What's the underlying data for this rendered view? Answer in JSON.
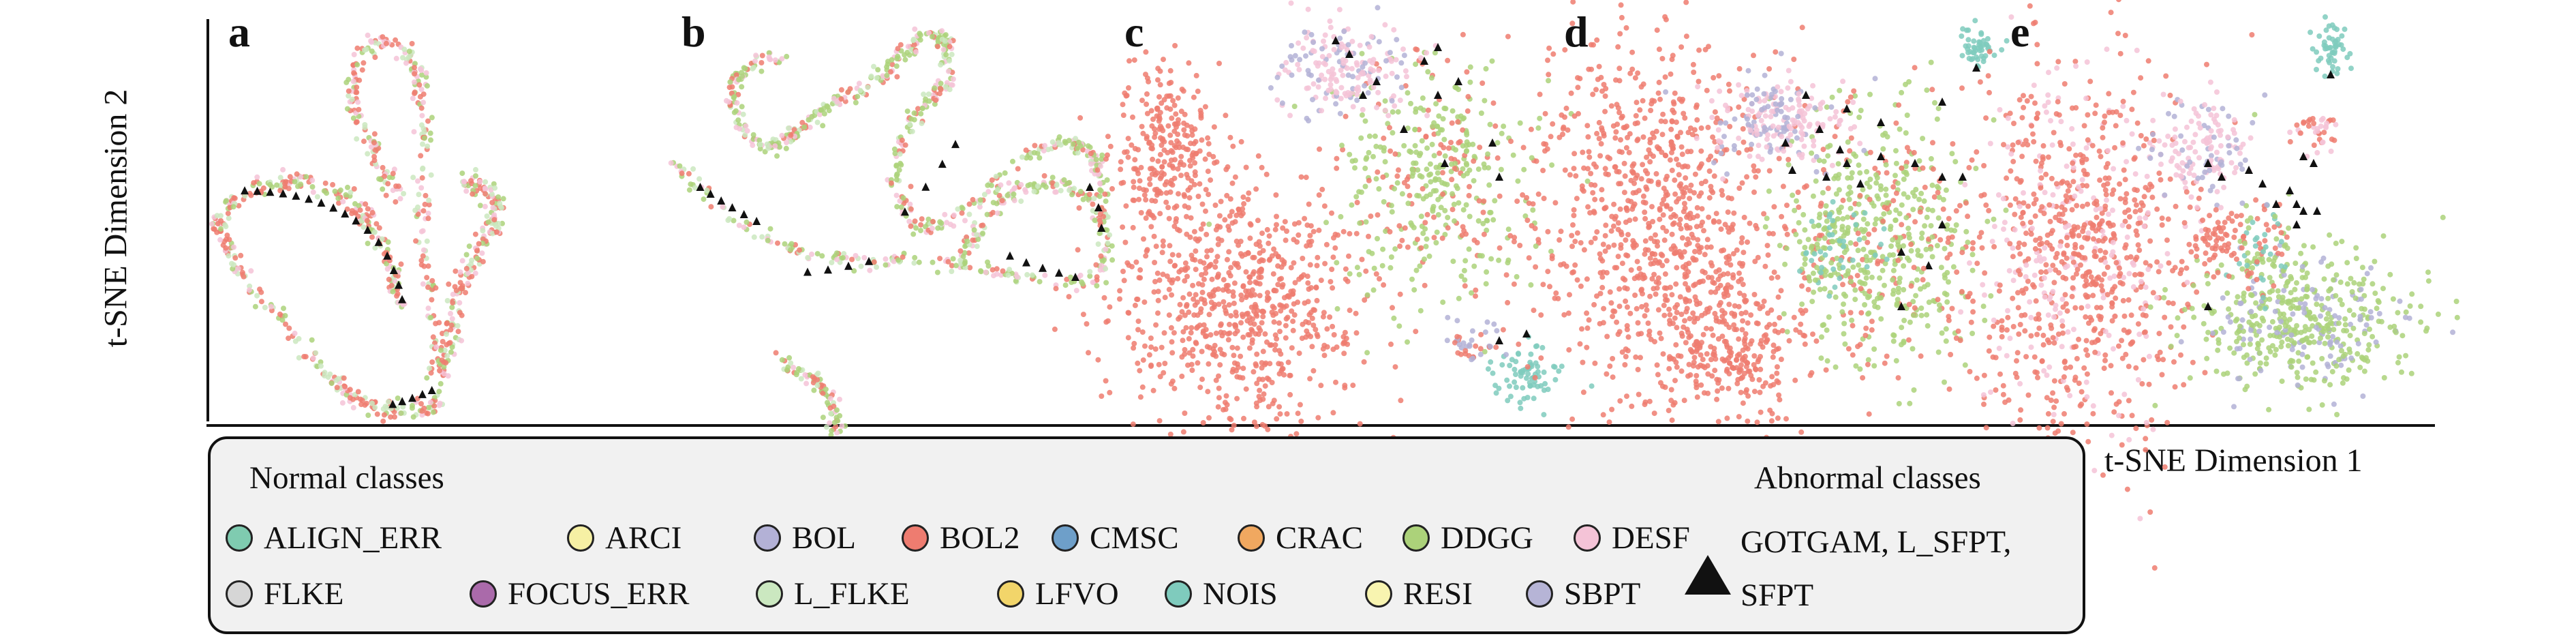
{
  "axes": {
    "ylabel": "t-SNE Dimension 2",
    "xlabel": "t-SNE Dimension 1"
  },
  "legend": {
    "normal_title": "Normal classes",
    "abnormal_title": "Abnormal classes",
    "normal_classes": [
      {
        "name": "ALIGN_ERR",
        "color": "#7fcbb0"
      },
      {
        "name": "ARCI",
        "color": "#f6f0a4"
      },
      {
        "name": "BOL",
        "color": "#b3b1d6"
      },
      {
        "name": "BOL2",
        "color": "#ee7c70"
      },
      {
        "name": "CMSC",
        "color": "#6e9fc9"
      },
      {
        "name": "CRAC",
        "color": "#f0a860"
      },
      {
        "name": "DDGG",
        "color": "#acd27a"
      },
      {
        "name": "DESF",
        "color": "#f4c3d7"
      },
      {
        "name": "FLKE",
        "color": "#d6d6d6"
      },
      {
        "name": "FOCUS_ERR",
        "color": "#aa6aaa"
      },
      {
        "name": "L_FLKE",
        "color": "#cbe8c0"
      },
      {
        "name": "LFVO",
        "color": "#f2d56a"
      },
      {
        "name": "NOIS",
        "color": "#7fcbbd"
      },
      {
        "name": "RESI",
        "color": "#f8f4b0"
      },
      {
        "name": "SBPT",
        "color": "#b6b4d6"
      }
    ],
    "abnormal_classes": "GOTGAM, L_SFPT, SFPT",
    "abnormal_marker_color": "#111111"
  },
  "chart_data": [
    {
      "type": "scatter",
      "panel": "a",
      "description_kind": "t-SNE embedding",
      "marker": "points",
      "series": [
        {
          "name": "BOL2",
          "color": "#ee7c70",
          "shape": "loop"
        },
        {
          "name": "DDGG",
          "color": "#acd27a",
          "shape": "loop"
        },
        {
          "name": "DESF",
          "color": "#f4c3d7",
          "shape": "loop"
        },
        {
          "name": "GOTGAM, L_SFPT, SFPT",
          "color": "#111111",
          "marker": "triangle",
          "count": 24
        }
      ]
    },
    {
      "type": "scatter",
      "panel": "b",
      "series": [
        {
          "name": "BOL2",
          "color": "#ee7c70"
        },
        {
          "name": "DDGG",
          "color": "#acd27a"
        },
        {
          "name": "DESF",
          "color": "#f4c3d7"
        },
        {
          "name": "L_FLKE",
          "color": "#cbe8c0"
        },
        {
          "name": "GOTGAM, L_SFPT, SFPT",
          "color": "#111111",
          "marker": "triangle",
          "count": 22
        }
      ]
    },
    {
      "type": "scatter",
      "panel": "c",
      "series": [
        {
          "name": "BOL2",
          "color": "#ee7c70"
        },
        {
          "name": "DDGG",
          "color": "#acd27a"
        },
        {
          "name": "DESF",
          "color": "#f4c3d7"
        },
        {
          "name": "NOIS",
          "color": "#7fcbbd"
        },
        {
          "name": "GOTGAM, L_SFPT, SFPT",
          "color": "#111111",
          "marker": "triangle",
          "count": 14
        }
      ]
    },
    {
      "type": "scatter",
      "panel": "d",
      "series": [
        {
          "name": "BOL2",
          "color": "#ee7c70"
        },
        {
          "name": "DDGG",
          "color": "#acd27a"
        },
        {
          "name": "DESF",
          "color": "#f4c3d7"
        },
        {
          "name": "NOIS",
          "color": "#7fcbbd"
        },
        {
          "name": "GOTGAM, L_SFPT, SFPT",
          "color": "#111111",
          "marker": "triangle",
          "count": 20
        }
      ]
    },
    {
      "type": "scatter",
      "panel": "e",
      "series": [
        {
          "name": "BOL2",
          "color": "#ee7c70"
        },
        {
          "name": "DDGG",
          "color": "#acd27a"
        },
        {
          "name": "DESF",
          "color": "#f4c3d7"
        },
        {
          "name": "NOIS",
          "color": "#7fcbbd"
        },
        {
          "name": "GOTGAM, L_SFPT, SFPT",
          "color": "#111111",
          "marker": "triangle",
          "count": 14
        }
      ]
    }
  ]
}
